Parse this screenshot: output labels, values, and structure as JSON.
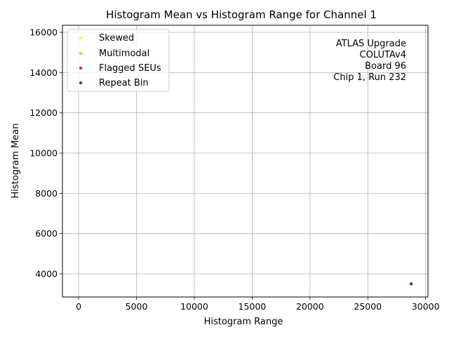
{
  "chart_data": {
    "type": "scatter",
    "title": "Histogram Mean vs Histogram Range for Channel 1",
    "xlabel": "Histogram Range",
    "ylabel": "Histogram Mean",
    "xlim": [
      -1400,
      30200
    ],
    "ylim": [
      2850,
      16350
    ],
    "xticks": [
      0,
      5000,
      10000,
      15000,
      20000,
      25000,
      30000
    ],
    "yticks": [
      4000,
      6000,
      8000,
      10000,
      12000,
      14000,
      16000
    ],
    "grid": true,
    "legend_position": "top-left",
    "series": [
      {
        "name": "Skewed",
        "color": "#ffff00",
        "x": [],
        "y": []
      },
      {
        "name": "Multimodal",
        "color": "#7fff00",
        "x": [],
        "y": []
      },
      {
        "name": "Flagged SEUs",
        "color": "#e31a1c",
        "x": [],
        "y": []
      },
      {
        "name": "Repeat Bin",
        "color": "#800080",
        "x": [],
        "y": []
      }
    ],
    "points": [
      {
        "x": 28750,
        "y": 3500,
        "color": "#8b1a4f"
      }
    ],
    "annotation": [
      "ATLAS Upgrade",
      "COLUTAv4",
      "Board 96",
      "Chip 1, Run 232"
    ]
  }
}
